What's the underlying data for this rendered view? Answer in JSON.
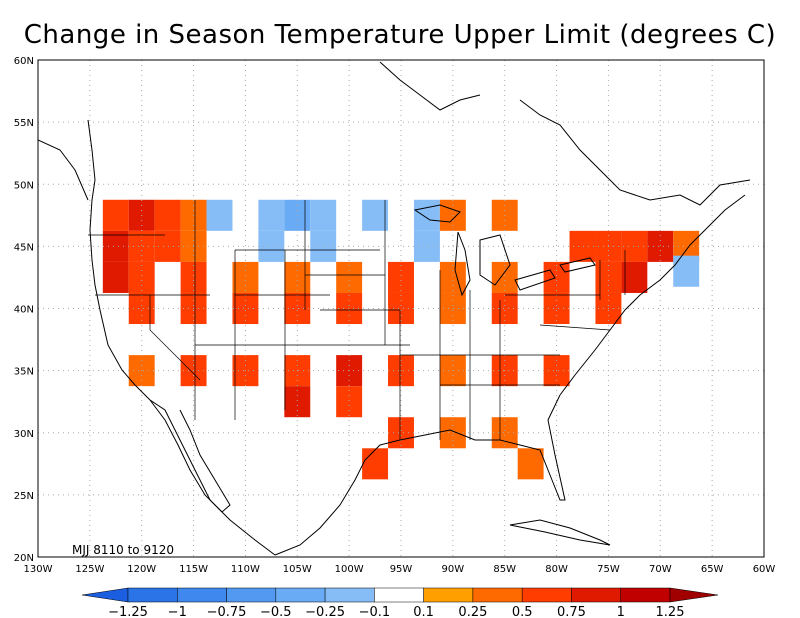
{
  "title": "Change in Season Temperature Upper Limit (degrees C)",
  "caption": "MJJ 8110 to 9120",
  "axes": {
    "lon_ticks": [
      "130W",
      "125W",
      "120W",
      "115W",
      "110W",
      "105W",
      "100W",
      "95W",
      "90W",
      "85W",
      "80W",
      "75W",
      "70W",
      "65W",
      "60W"
    ],
    "lat_ticks": [
      "20N",
      "25N",
      "30N",
      "35N",
      "40N",
      "45N",
      "50N",
      "55N",
      "60N"
    ],
    "lon_range": [
      -130,
      -60
    ],
    "lat_range": [
      20,
      60
    ],
    "grid": true
  },
  "colorbar": {
    "labels": [
      "-1.25",
      "-1",
      "-0.75",
      "-0.5",
      "-0.25",
      "-0.1",
      "0.1",
      "0.25",
      "0.5",
      "0.75",
      "1",
      "1.25"
    ],
    "colors": [
      "#1c5ee0",
      "#2b74e8",
      "#3e88ee",
      "#5399f2",
      "#6aabf5",
      "#86bdf7",
      "#ffffff",
      "#ffa000",
      "#ff6a00",
      "#ff3d00",
      "#e01a00",
      "#c00000",
      "#a00000"
    ]
  },
  "chart_data": {
    "type": "heatmap",
    "title": "Change in Season Temperature Upper Limit (degrees C)",
    "grid_resolution_deg": 2.5,
    "x_axis": "longitude",
    "y_axis": "latitude",
    "cells": [
      {
        "lon": -122.5,
        "lat": 47.5,
        "value": 0.5
      },
      {
        "lon": -120.0,
        "lat": 47.5,
        "value": 0.75
      },
      {
        "lon": -117.5,
        "lat": 47.5,
        "value": 0.5
      },
      {
        "lon": -115.0,
        "lat": 47.5,
        "value": 0.25
      },
      {
        "lon": -112.5,
        "lat": 47.5,
        "value": -0.25
      },
      {
        "lon": -107.5,
        "lat": 47.5,
        "value": -0.25
      },
      {
        "lon": -105.0,
        "lat": 47.5,
        "value": -0.5
      },
      {
        "lon": -102.5,
        "lat": 47.5,
        "value": -0.25
      },
      {
        "lon": -97.5,
        "lat": 47.5,
        "value": -0.25
      },
      {
        "lon": -92.5,
        "lat": 47.5,
        "value": -0.25
      },
      {
        "lon": -90.0,
        "lat": 47.5,
        "value": 0.25
      },
      {
        "lon": -85.0,
        "lat": 47.5,
        "value": 0.25
      },
      {
        "lon": -122.5,
        "lat": 45.0,
        "value": 0.75
      },
      {
        "lon": -120.0,
        "lat": 45.0,
        "value": 0.5
      },
      {
        "lon": -117.5,
        "lat": 45.0,
        "value": 0.5
      },
      {
        "lon": -115.0,
        "lat": 45.0,
        "value": 0.25
      },
      {
        "lon": -107.5,
        "lat": 45.0,
        "value": -0.25
      },
      {
        "lon": -102.5,
        "lat": 45.0,
        "value": -0.25
      },
      {
        "lon": -92.5,
        "lat": 45.0,
        "value": -0.25
      },
      {
        "lon": -77.5,
        "lat": 45.0,
        "value": 0.5
      },
      {
        "lon": -75.0,
        "lat": 45.0,
        "value": 0.5
      },
      {
        "lon": -72.5,
        "lat": 45.0,
        "value": 0.5
      },
      {
        "lon": -70.0,
        "lat": 45.0,
        "value": 0.75
      },
      {
        "lon": -67.5,
        "lat": 45.0,
        "value": 0.25
      },
      {
        "lon": -67.5,
        "lat": 43.0,
        "value": -0.25
      },
      {
        "lon": -122.5,
        "lat": 42.5,
        "value": 0.75
      },
      {
        "lon": -120.0,
        "lat": 42.5,
        "value": 0.5
      },
      {
        "lon": -115.0,
        "lat": 42.5,
        "value": 0.5
      },
      {
        "lon": -110.0,
        "lat": 42.5,
        "value": 0.25
      },
      {
        "lon": -105.0,
        "lat": 42.5,
        "value": 0.25
      },
      {
        "lon": -100.0,
        "lat": 42.5,
        "value": 0.25
      },
      {
        "lon": -95.0,
        "lat": 42.5,
        "value": 0.5
      },
      {
        "lon": -90.0,
        "lat": 42.5,
        "value": 0.25
      },
      {
        "lon": -85.0,
        "lat": 42.5,
        "value": 0.25
      },
      {
        "lon": -80.0,
        "lat": 42.5,
        "value": 0.5
      },
      {
        "lon": -75.0,
        "lat": 42.5,
        "value": 0.5
      },
      {
        "lon": -72.5,
        "lat": 42.5,
        "value": 0.75
      },
      {
        "lon": -120.0,
        "lat": 40.0,
        "value": 0.5
      },
      {
        "lon": -115.0,
        "lat": 40.0,
        "value": 0.5
      },
      {
        "lon": -110.0,
        "lat": 40.0,
        "value": 0.5
      },
      {
        "lon": -105.0,
        "lat": 40.0,
        "value": 0.5
      },
      {
        "lon": -100.0,
        "lat": 40.0,
        "value": 0.5
      },
      {
        "lon": -95.0,
        "lat": 40.0,
        "value": 0.5
      },
      {
        "lon": -90.0,
        "lat": 40.0,
        "value": 0.25
      },
      {
        "lon": -85.0,
        "lat": 40.0,
        "value": 0.5
      },
      {
        "lon": -80.0,
        "lat": 40.0,
        "value": 0.5
      },
      {
        "lon": -75.0,
        "lat": 40.0,
        "value": 0.5
      },
      {
        "lon": -120.0,
        "lat": 35.0,
        "value": 0.25
      },
      {
        "lon": -115.0,
        "lat": 35.0,
        "value": 0.5
      },
      {
        "lon": -110.0,
        "lat": 35.0,
        "value": 0.5
      },
      {
        "lon": -105.0,
        "lat": 35.0,
        "value": 0.5
      },
      {
        "lon": -100.0,
        "lat": 35.0,
        "value": 0.75
      },
      {
        "lon": -95.0,
        "lat": 35.0,
        "value": 0.5
      },
      {
        "lon": -90.0,
        "lat": 35.0,
        "value": 0.25
      },
      {
        "lon": -85.0,
        "lat": 35.0,
        "value": 0.5
      },
      {
        "lon": -80.0,
        "lat": 35.0,
        "value": 0.5
      },
      {
        "lon": -105.0,
        "lat": 32.5,
        "value": 0.75
      },
      {
        "lon": -100.0,
        "lat": 32.5,
        "value": 0.5
      },
      {
        "lon": -95.0,
        "lat": 30.0,
        "value": 0.5
      },
      {
        "lon": -90.0,
        "lat": 30.0,
        "value": 0.25
      },
      {
        "lon": -85.0,
        "lat": 30.0,
        "value": 0.25
      },
      {
        "lon": -82.5,
        "lat": 27.5,
        "value": 0.25
      },
      {
        "lon": -97.5,
        "lat": 27.5,
        "value": 0.5
      }
    ]
  }
}
